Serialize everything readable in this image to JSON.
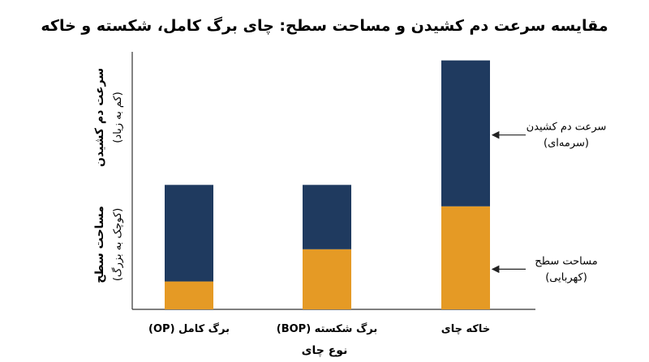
{
  "chart_data": {
    "type": "bar",
    "stacked": true,
    "title": "مقایسه سرعت دم کشیدن و مساحت سطح: چای برگ کامل، شکسته و خاکه",
    "xlabel": "نوع چای",
    "ylabel": {
      "upper": {
        "main": "سرعت دم کشیدن",
        "sub": "(کم به زیاد)"
      },
      "lower": {
        "main": "مساحت سطح",
        "sub": "(کوچک به بزرگ)"
      }
    },
    "categories": [
      "برگ کامل (OP)",
      "برگ شکسته (BOP)",
      "خاکه چای"
    ],
    "series": [
      {
        "key": "surface",
        "color": "#e59a25",
        "values": [
          13,
          28,
          48
        ]
      },
      {
        "key": "brewing",
        "color": "#1f3a5f",
        "values": [
          45,
          30,
          68
        ]
      }
    ],
    "ylim": [
      0,
      120
    ],
    "grid": false,
    "annotations": [
      {
        "series": "brewing",
        "lines": [
          "سرعت دم کشیدن",
          "(سرمه‌ای)"
        ]
      },
      {
        "series": "surface",
        "lines": [
          "مساحت سطح",
          "(کهربایی)"
        ]
      }
    ]
  }
}
